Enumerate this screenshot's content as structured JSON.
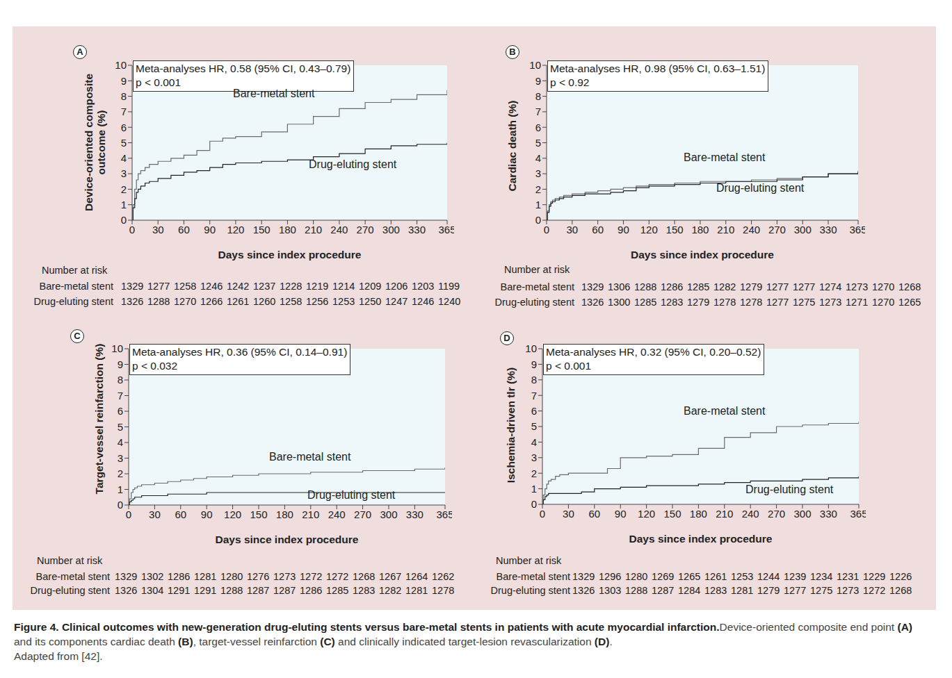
{
  "chart_data": [
    {
      "type": "line",
      "panel": "A",
      "line_style": "step",
      "grid": false,
      "annotation": [
        "Meta-analyses HR, 0.58 (95% CI, 0.43–0.79)",
        "p < 0.001"
      ],
      "y_label": [
        "Device-oriented composite",
        "outcome (%)"
      ],
      "x_label": "Days since index procedure",
      "xlim": [
        0,
        365
      ],
      "xticks": [
        0,
        30,
        60,
        90,
        120,
        150,
        180,
        210,
        240,
        270,
        300,
        330,
        365
      ],
      "ylim": [
        0,
        10
      ],
      "yticks": [
        0,
        1,
        2,
        3,
        4,
        5,
        6,
        7,
        8,
        9,
        10
      ],
      "x": [
        0,
        1,
        3,
        5,
        7,
        10,
        15,
        20,
        30,
        45,
        60,
        75,
        90,
        105,
        120,
        150,
        180,
        210,
        240,
        270,
        300,
        330,
        365
      ],
      "series": [
        {
          "name": "Bare-metal stent",
          "color": "#6a6a6a",
          "values": [
            0,
            1.0,
            2.0,
            2.6,
            3.0,
            3.2,
            3.4,
            3.6,
            3.8,
            4.0,
            4.2,
            4.5,
            5.1,
            5.3,
            5.4,
            5.7,
            6.2,
            6.7,
            7.2,
            7.6,
            7.8,
            8.1,
            8.4
          ]
        },
        {
          "name": "Drug-eluting stent",
          "color": "#222222",
          "values": [
            0,
            0.8,
            1.4,
            1.8,
            2.0,
            2.2,
            2.4,
            2.5,
            2.7,
            2.9,
            3.1,
            3.2,
            3.4,
            3.6,
            3.7,
            3.8,
            3.9,
            4.1,
            4.3,
            4.6,
            4.8,
            4.9,
            5.0
          ]
        }
      ],
      "number_at_risk": {
        "title": "Number at risk",
        "rows": [
          {
            "name": "Bare-metal stent",
            "values": [
              1329,
              1277,
              1258,
              1246,
              1242,
              1237,
              1228,
              1219,
              1214,
              1209,
              1206,
              1203,
              1199
            ]
          },
          {
            "name": "Drug-eluting stent",
            "values": [
              1326,
              1288,
              1270,
              1266,
              1261,
              1260,
              1258,
              1256,
              1253,
              1250,
              1247,
              1246,
              1240
            ]
          }
        ]
      }
    },
    {
      "type": "line",
      "panel": "B",
      "line_style": "step",
      "grid": false,
      "annotation": [
        "Meta-analyses HR, 0.98 (95% CI, 0.63–1.51)",
        "p < 0.92"
      ],
      "y_label": [
        "Cardiac death (%)"
      ],
      "x_label": "Days since index procedure",
      "xlim": [
        0,
        365
      ],
      "xticks": [
        0,
        30,
        60,
        90,
        120,
        150,
        180,
        210,
        240,
        270,
        300,
        330,
        365
      ],
      "ylim": [
        0,
        10
      ],
      "yticks": [
        0,
        1,
        2,
        3,
        4,
        5,
        6,
        7,
        8,
        9,
        10
      ],
      "x": [
        0,
        1,
        3,
        5,
        7,
        10,
        15,
        20,
        30,
        45,
        60,
        75,
        90,
        105,
        120,
        150,
        180,
        210,
        240,
        270,
        300,
        330,
        365
      ],
      "series": [
        {
          "name": "Bare-metal stent",
          "color": "#6a6a6a",
          "values": [
            0,
            0.6,
            1.0,
            1.2,
            1.3,
            1.4,
            1.5,
            1.6,
            1.7,
            1.8,
            1.9,
            2.0,
            2.1,
            2.2,
            2.3,
            2.4,
            2.5,
            2.5,
            2.6,
            2.7,
            2.8,
            3.0,
            3.2
          ]
        },
        {
          "name": "Drug-eluting stent",
          "color": "#222222",
          "values": [
            0,
            0.5,
            0.9,
            1.1,
            1.2,
            1.3,
            1.4,
            1.5,
            1.6,
            1.7,
            1.7,
            1.8,
            1.9,
            2.1,
            2.2,
            2.3,
            2.4,
            2.5,
            2.5,
            2.6,
            2.8,
            3.0,
            3.1
          ]
        }
      ],
      "number_at_risk": {
        "title": "Number at risk",
        "rows": [
          {
            "name": "Bare-metal stent",
            "values": [
              1329,
              1306,
              1288,
              1286,
              1285,
              1282,
              1279,
              1277,
              1277,
              1274,
              1273,
              1270,
              1268
            ]
          },
          {
            "name": "Drug-eluting stent",
            "values": [
              1326,
              1300,
              1285,
              1283,
              1279,
              1278,
              1278,
              1277,
              1275,
              1273,
              1271,
              1270,
              1265
            ]
          }
        ]
      }
    },
    {
      "type": "line",
      "panel": "C",
      "line_style": "step",
      "grid": false,
      "annotation": [
        "Meta-analyses HR, 0.36 (95% CI, 0.14–0.91)",
        "p < 0.032"
      ],
      "y_label": [
        "Target-vessel reinfarction (%)"
      ],
      "x_label": "Days since index procedure",
      "xlim": [
        0,
        365
      ],
      "xticks": [
        0,
        30,
        60,
        90,
        120,
        150,
        180,
        210,
        240,
        270,
        300,
        330,
        365
      ],
      "ylim": [
        0,
        10
      ],
      "yticks": [
        0,
        1,
        2,
        3,
        4,
        5,
        6,
        7,
        8,
        9,
        10
      ],
      "x": [
        0,
        1,
        3,
        5,
        7,
        10,
        15,
        20,
        30,
        45,
        60,
        75,
        90,
        105,
        120,
        150,
        180,
        210,
        240,
        270,
        300,
        330,
        365
      ],
      "series": [
        {
          "name": "Bare-metal stent",
          "color": "#6a6a6a",
          "values": [
            0,
            0.4,
            0.8,
            1.0,
            1.1,
            1.2,
            1.3,
            1.3,
            1.4,
            1.5,
            1.6,
            1.7,
            1.8,
            1.8,
            1.9,
            2.0,
            2.0,
            2.1,
            2.1,
            2.2,
            2.2,
            2.3,
            2.4
          ]
        },
        {
          "name": "Drug-eluting stent",
          "color": "#222222",
          "values": [
            0,
            0.2,
            0.3,
            0.4,
            0.5,
            0.5,
            0.6,
            0.6,
            0.6,
            0.7,
            0.7,
            0.7,
            0.8,
            0.8,
            0.8,
            0.8,
            0.8,
            0.8,
            0.8,
            0.8,
            0.8,
            0.8,
            0.8
          ]
        }
      ],
      "number_at_risk": {
        "title": "Number at risk",
        "rows": [
          {
            "name": "Bare-metal stent",
            "values": [
              1329,
              1302,
              1286,
              1281,
              1280,
              1276,
              1273,
              1272,
              1272,
              1268,
              1267,
              1264,
              1262
            ]
          },
          {
            "name": "Drug-eluting stent",
            "values": [
              1326,
              1304,
              1291,
              1291,
              1288,
              1287,
              1287,
              1286,
              1285,
              1283,
              1282,
              1281,
              1278
            ]
          }
        ]
      }
    },
    {
      "type": "line",
      "panel": "D",
      "line_style": "step",
      "grid": false,
      "annotation": [
        "Meta-analyses HR, 0.32 (95% CI, 0.20–0.52)",
        "p < 0.001"
      ],
      "y_label": [
        "Ischemia-driven tlr (%)"
      ],
      "x_label": "Days since index procedure",
      "xlim": [
        0,
        365
      ],
      "xticks": [
        0,
        30,
        60,
        90,
        120,
        150,
        180,
        210,
        240,
        270,
        300,
        330,
        365
      ],
      "ylim": [
        0,
        10
      ],
      "yticks": [
        0,
        1,
        2,
        3,
        4,
        5,
        6,
        7,
        8,
        9,
        10
      ],
      "x": [
        0,
        1,
        3,
        5,
        7,
        10,
        15,
        20,
        30,
        45,
        60,
        75,
        90,
        105,
        120,
        150,
        180,
        210,
        240,
        270,
        300,
        330,
        365
      ],
      "series": [
        {
          "name": "Bare-metal stent",
          "color": "#6a6a6a",
          "values": [
            0,
            0.6,
            1.0,
            1.3,
            1.5,
            1.6,
            1.8,
            1.9,
            2.0,
            2.0,
            2.0,
            2.3,
            3.0,
            3.0,
            3.1,
            3.2,
            3.6,
            4.3,
            4.6,
            5.0,
            5.1,
            5.2,
            5.3
          ]
        },
        {
          "name": "Drug-eluting stent",
          "color": "#222222",
          "values": [
            0,
            0.3,
            0.5,
            0.6,
            0.7,
            0.7,
            0.7,
            0.7,
            0.7,
            0.8,
            1.0,
            1.0,
            1.1,
            1.1,
            1.2,
            1.2,
            1.3,
            1.4,
            1.5,
            1.5,
            1.6,
            1.7,
            1.8
          ]
        }
      ],
      "number_at_risk": {
        "title": "Number at risk",
        "rows": [
          {
            "name": "Bare-metal stent",
            "values": [
              1329,
              1296,
              1280,
              1269,
              1265,
              1261,
              1253,
              1244,
              1239,
              1234,
              1231,
              1229,
              1226
            ]
          },
          {
            "name": "Drug-eluting stent",
            "values": [
              1326,
              1303,
              1288,
              1287,
              1284,
              1283,
              1281,
              1279,
              1277,
              1275,
              1273,
              1272,
              1268
            ]
          }
        ]
      }
    }
  ],
  "caption": {
    "segments": [
      {
        "text": "Figure 4. Clinical outcomes with new-generation drug-eluting stents versus bare-metal stents in patients with acute myocardial infarction.",
        "bold": true
      },
      {
        "text": "Device-oriented composite end point ",
        "bold": false
      },
      {
        "text": "(A)",
        "bold": true
      },
      {
        "text": " and its components cardiac death ",
        "bold": false
      },
      {
        "text": "(B)",
        "bold": true
      },
      {
        "text": ", target-vessel reinfarction ",
        "bold": false
      },
      {
        "text": "(C)",
        "bold": true
      },
      {
        "text": " and clinically indicated target-lesion revascularization ",
        "bold": false
      },
      {
        "text": "(D)",
        "bold": true
      },
      {
        "text": ".",
        "bold": false
      }
    ],
    "source": "Adapted from [42]."
  }
}
